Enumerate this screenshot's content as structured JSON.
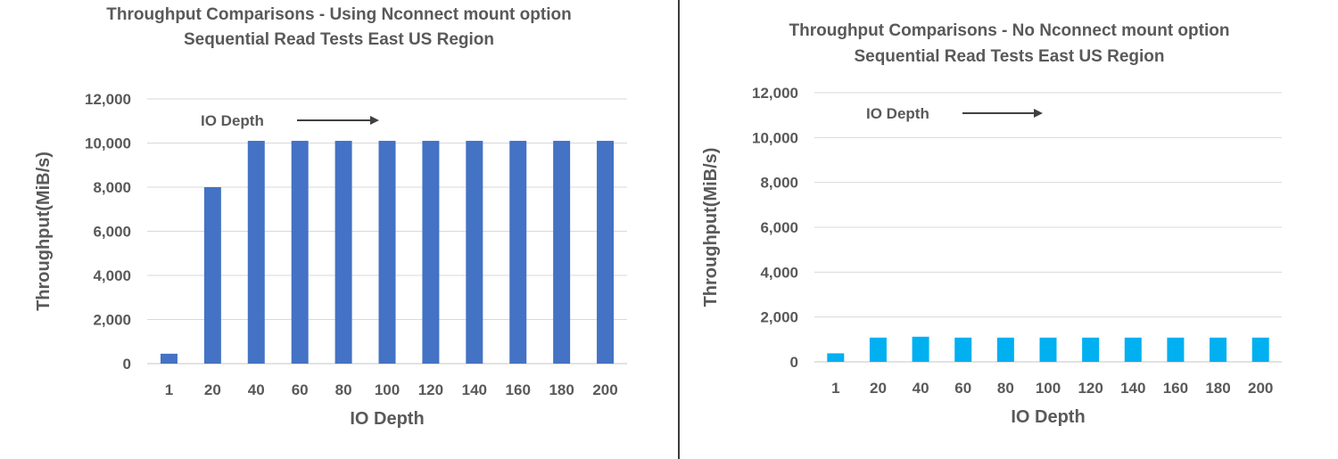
{
  "chart_data": [
    {
      "type": "bar",
      "title": "Throughput Comparisons - Using Nconnect mount option",
      "subtitle": "Sequential Read Tests East US Region",
      "xlabel": "IO Depth",
      "ylabel": "Throughput(MiB/s)",
      "ylim": [
        0,
        12000
      ],
      "yticks": [
        "0",
        "2,000",
        "4,000",
        "6,000",
        "8,000",
        "10,000",
        "12,000"
      ],
      "grid": true,
      "annotation": "IO Depth",
      "color": "#4472C4",
      "categories": [
        "1",
        "20",
        "40",
        "60",
        "80",
        "100",
        "120",
        "140",
        "160",
        "180",
        "200"
      ],
      "values": [
        450,
        8000,
        10100,
        10100,
        10100,
        10100,
        10100,
        10100,
        10100,
        10100,
        10100
      ]
    },
    {
      "type": "bar",
      "title": "Throughput Comparisons - No Nconnect mount option",
      "subtitle": "Sequential Read Tests East US Region",
      "xlabel": "IO Depth",
      "ylabel": "Throughput(MiB/s)",
      "ylim": [
        0,
        12000
      ],
      "yticks": [
        "0",
        "2,000",
        "4,000",
        "6,000",
        "8,000",
        "10,000",
        "12,000"
      ],
      "grid": true,
      "annotation": "IO Depth",
      "color": "#00B0F0",
      "categories": [
        "1",
        "20",
        "40",
        "60",
        "80",
        "100",
        "120",
        "140",
        "160",
        "180",
        "200"
      ],
      "values": [
        380,
        1080,
        1120,
        1080,
        1080,
        1080,
        1080,
        1080,
        1080,
        1080,
        1080
      ]
    }
  ]
}
